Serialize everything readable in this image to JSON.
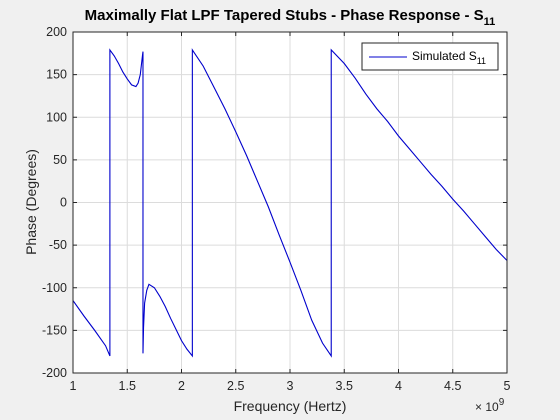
{
  "chart_data": {
    "type": "line",
    "title_main": "Maximally Flat LPF Tapered Stubs - Phase Response - S",
    "title_sub": "11",
    "xlabel": "Frequency (Hertz)",
    "ylabel": "Phase (Degrees)",
    "x_exponent_base": "× 10",
    "x_exponent_power": "9",
    "xlim": [
      1,
      5
    ],
    "ylim": [
      -200,
      200
    ],
    "xticks": [
      1,
      1.5,
      2,
      2.5,
      3,
      3.5,
      4,
      4.5,
      5
    ],
    "xtick_labels": [
      "1",
      "1.5",
      "2",
      "2.5",
      "3",
      "3.5",
      "4",
      "4.5",
      "5"
    ],
    "yticks": [
      -200,
      -150,
      -100,
      -50,
      0,
      50,
      100,
      150,
      200
    ],
    "ytick_labels": [
      "-200",
      "-150",
      "-100",
      "-50",
      "0",
      "50",
      "100",
      "150",
      "200"
    ],
    "grid": true,
    "legend_position": "top-right",
    "series": [
      {
        "name_main": "Simulated S",
        "name_sub": "11",
        "color": "#0000cc",
        "x": [
          1.0,
          1.1,
          1.2,
          1.3,
          1.34,
          1.34,
          1.38,
          1.42,
          1.46,
          1.5,
          1.54,
          1.58,
          1.6,
          1.62,
          1.64,
          1.645,
          1.645,
          1.65,
          1.66,
          1.68,
          1.7,
          1.75,
          1.8,
          1.85,
          1.9,
          1.95,
          2.0,
          2.05,
          2.1,
          2.1,
          2.2,
          2.3,
          2.4,
          2.5,
          2.6,
          2.7,
          2.8,
          2.9,
          3.0,
          3.1,
          3.2,
          3.3,
          3.38,
          3.38,
          3.5,
          3.6,
          3.7,
          3.8,
          3.9,
          4.0,
          4.1,
          4.2,
          4.3,
          4.4,
          4.5,
          4.6,
          4.7,
          4.8,
          4.9,
          5.0
        ],
        "y": [
          -115,
          -133,
          -150,
          -168,
          -180,
          179,
          172,
          163,
          153,
          145,
          138,
          136,
          140,
          150,
          172,
          177,
          -177,
          -147,
          -118,
          -103,
          -96,
          -100,
          -110,
          -122,
          -136,
          -149,
          -162,
          -172,
          -180,
          179,
          160,
          135,
          110,
          83,
          55,
          25,
          -5,
          -38,
          -70,
          -103,
          -138,
          -165,
          -180,
          179,
          163,
          146,
          127,
          110,
          95,
          78,
          63,
          48,
          33,
          19,
          4,
          -10,
          -25,
          -40,
          -55,
          -68
        ]
      }
    ]
  }
}
